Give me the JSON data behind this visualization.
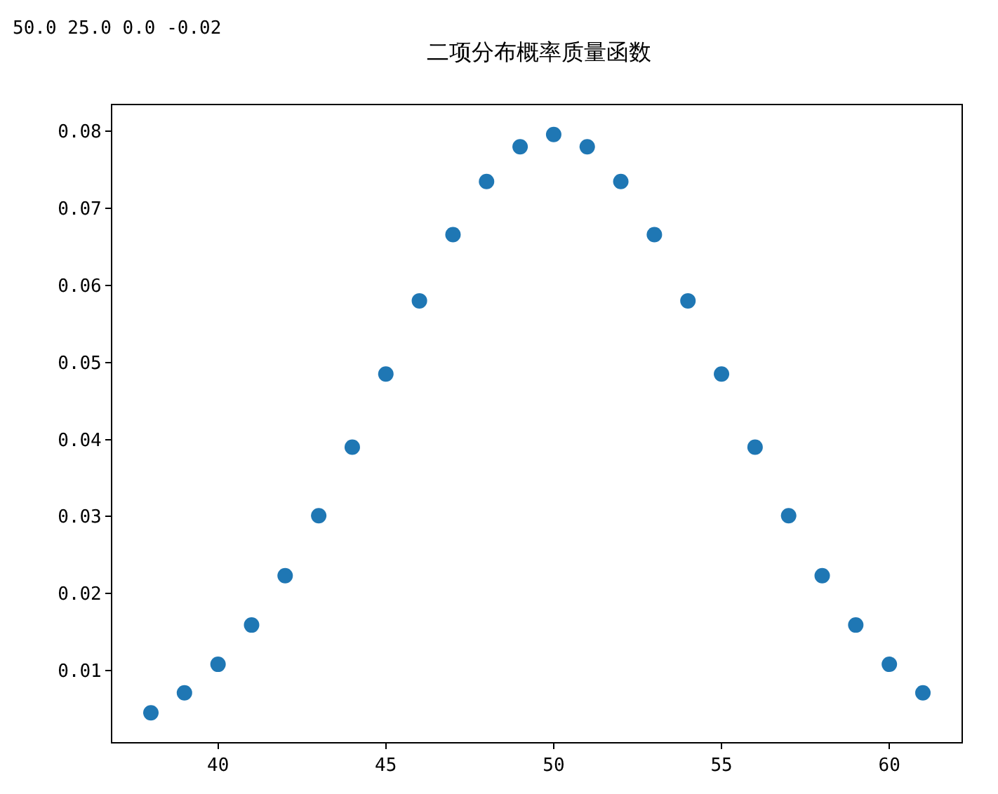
{
  "chart_data": {
    "type": "scatter",
    "title": "二项分布概率质量函数",
    "annotations": [
      "50.0 25.0 0.0 -0.02"
    ],
    "x": [
      38,
      39,
      40,
      41,
      42,
      43,
      44,
      45,
      46,
      47,
      48,
      49,
      50,
      51,
      52,
      53,
      54,
      55,
      56,
      57,
      58,
      59,
      60,
      61
    ],
    "series": [
      {
        "color": "#1f77b4",
        "values": [
          0.0045,
          0.0071,
          0.0108,
          0.0159,
          0.0223,
          0.0301,
          0.039,
          0.0485,
          0.058,
          0.0666,
          0.0735,
          0.078,
          0.0796,
          0.078,
          0.0735,
          0.0666,
          0.058,
          0.0485,
          0.039,
          0.0301,
          0.0223,
          0.0159,
          0.0108,
          0.0071
        ]
      }
    ],
    "xlim": [
      36.85,
      62.15
    ],
    "xticks": [
      40,
      45,
      50,
      55,
      60
    ],
    "ylim": [
      0.0007,
      0.0834
    ],
    "yticks": [
      {
        "value": 0.01,
        "label": "0.01"
      },
      {
        "value": 0.02,
        "label": "0.02"
      },
      {
        "value": 0.03,
        "label": "0.03"
      },
      {
        "value": 0.04,
        "label": "0.04"
      },
      {
        "value": 0.05,
        "label": "0.05"
      },
      {
        "value": 0.06,
        "label": "0.06"
      },
      {
        "value": 0.07,
        "label": "0.07"
      },
      {
        "value": 0.08,
        "label": "0.08"
      }
    ],
    "marker": "circle"
  }
}
